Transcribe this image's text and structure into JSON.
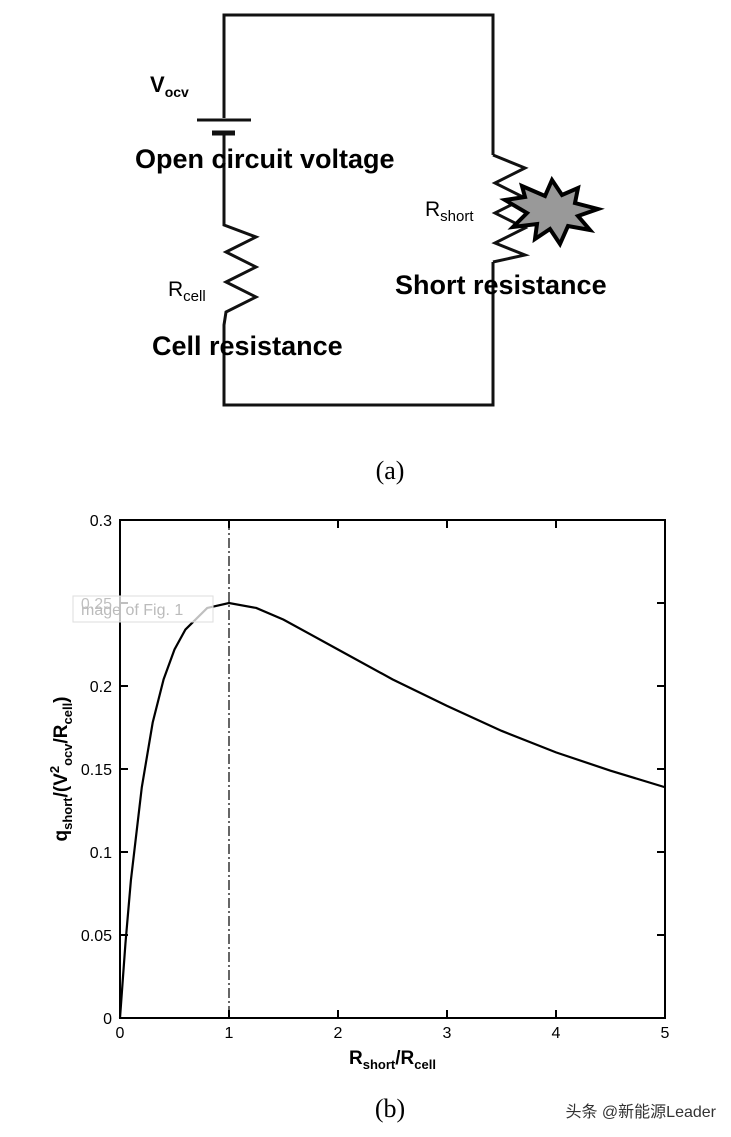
{
  "diagram": {
    "battery_label": {
      "main": "V",
      "sub": "ocv"
    },
    "battery_caption": "Open circuit voltage",
    "cell_label": {
      "main": "R",
      "sub": "cell"
    },
    "cell_caption": "Cell resistance",
    "short_label": {
      "main": "R",
      "sub": "short"
    },
    "short_caption": "Short resistance",
    "caption": "(a)"
  },
  "chart_data": {
    "type": "line",
    "x": [
      0,
      0.05,
      0.1,
      0.2,
      0.3,
      0.4,
      0.5,
      0.6,
      0.8,
      1,
      1.25,
      1.5,
      2,
      2.5,
      3,
      3.5,
      4,
      4.5,
      5
    ],
    "series": [
      {
        "color": "#000000",
        "values": [
          0,
          0.045,
          0.083,
          0.139,
          0.178,
          0.204,
          0.222,
          0.234,
          0.247,
          0.25,
          0.247,
          0.24,
          0.222,
          0.204,
          0.188,
          0.173,
          0.16,
          0.149,
          0.139
        ]
      }
    ],
    "xlim": [
      0,
      5
    ],
    "ylim": [
      0,
      0.3
    ],
    "xticks": [
      0,
      1,
      2,
      3,
      4,
      5
    ],
    "yticks": [
      0,
      0.05,
      0.1,
      0.15,
      0.2,
      0.25,
      0.3
    ],
    "reference_x": 1,
    "x_label": [
      {
        "text": "R"
      },
      {
        "text": "short",
        "script": "sub"
      },
      {
        "text": "/R"
      },
      {
        "text": "cell",
        "script": "sub"
      }
    ],
    "y_label": [
      {
        "text": "q"
      },
      {
        "text": "short",
        "script": "sub"
      },
      {
        "text": "/(V"
      },
      {
        "text": "2",
        "script": "sup"
      },
      {
        "text": "ocv",
        "script": "sub"
      },
      {
        "text": "/R"
      },
      {
        "text": "cell",
        "script": "sub"
      },
      {
        "text": ")"
      }
    ],
    "overlay_text": "mage of Fig. 1",
    "caption": "(b)"
  },
  "watermark": "头条 @新能源Leader"
}
